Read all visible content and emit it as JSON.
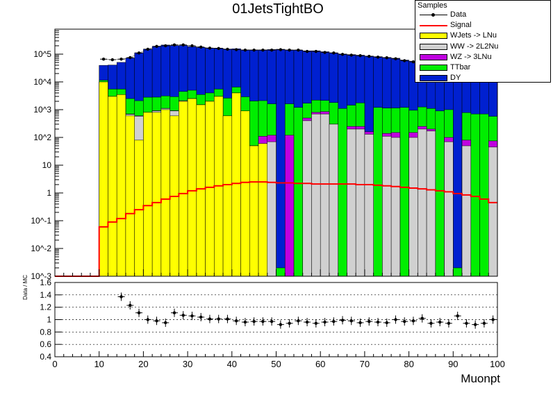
{
  "chart_data": {
    "type": "bar",
    "title": "01JetsTightBO",
    "xlabel": "Muonpt",
    "ratio_ylabel": "Data / MC",
    "legend_title": "Samples",
    "log_scale_y": true,
    "xlim": [
      0,
      100
    ],
    "ylim_log_exp": [
      -3,
      5.9
    ],
    "ratio_ylim": [
      0.4,
      1.6
    ],
    "x_ticks": [
      "0",
      "10",
      "20",
      "30",
      "40",
      "50",
      "60",
      "70",
      "80",
      "90",
      "100"
    ],
    "y_ticks": [
      "10^-3",
      "10^-2",
      "10^-1",
      "1",
      "10",
      "10^2",
      "10^3",
      "10^4",
      "10^5"
    ],
    "ratio_ticks": [
      "0.4",
      "0.6",
      "0.8",
      "1",
      "1.2",
      "1.4",
      "1.6"
    ],
    "bin_width": 2,
    "bin_low_edges": [
      10,
      12,
      14,
      16,
      18,
      20,
      22,
      24,
      26,
      28,
      30,
      32,
      34,
      36,
      38,
      40,
      42,
      44,
      46,
      48,
      50,
      52,
      54,
      56,
      58,
      60,
      62,
      64,
      66,
      68,
      70,
      72,
      74,
      76,
      78,
      80,
      82,
      84,
      86,
      88,
      90,
      92,
      94,
      96,
      98
    ],
    "series": [
      {
        "name": "WJets -> LNu",
        "color": "#ffff00",
        "values": [
          10000,
          3000,
          3500,
          600,
          80,
          800,
          800,
          1000,
          600,
          2000,
          2500,
          1500,
          2000,
          3000,
          600,
          4000,
          900,
          50,
          60,
          0.001,
          0.001,
          0.001,
          0.001,
          0.001,
          0.001,
          0.001,
          0.001,
          0.001,
          0.001,
          0.001,
          0.001,
          0.001,
          0.001,
          0.001,
          0.001,
          0.001,
          0.001,
          0.001,
          0.001,
          0.001,
          0.001,
          0.001,
          0.001,
          0.001,
          0.001
        ]
      },
      {
        "name": "WW -> 2L2Nu",
        "color": "#d0d0d0",
        "values": [
          0,
          0,
          0,
          80,
          500,
          0,
          100,
          100,
          300,
          100,
          0,
          0,
          0,
          0,
          0,
          0,
          0,
          0,
          0,
          70,
          0,
          0,
          0,
          400,
          700,
          700,
          300,
          0,
          200,
          200,
          130,
          0,
          110,
          100,
          0,
          100,
          200,
          170,
          0,
          70,
          0,
          50,
          0,
          0,
          45
        ]
      },
      {
        "name": "WZ -> 3LNu",
        "color": "#c000e0",
        "values": [
          0,
          0,
          0,
          20,
          20,
          0,
          20,
          20,
          20,
          0,
          0,
          0,
          0,
          0,
          0,
          0,
          0,
          0,
          50,
          50,
          0,
          120,
          0,
          100,
          100,
          150,
          0,
          0,
          50,
          50,
          30,
          0,
          30,
          50,
          0,
          50,
          50,
          30,
          0,
          30,
          0,
          30,
          0,
          0,
          30
        ]
      },
      {
        "name": "TTbar",
        "color": "#00ee00",
        "values": [
          1500,
          2500,
          2000,
          1800,
          1500,
          2000,
          1900,
          2000,
          2000,
          2400,
          2500,
          2000,
          2000,
          2500,
          2000,
          2500,
          2000,
          2000,
          2000,
          1500,
          0.001,
          1500,
          1200,
          1200,
          1400,
          1300,
          1500,
          1100,
          1200,
          1500,
          0.001,
          1200,
          1000,
          1000,
          1200,
          800,
          1000,
          900,
          900,
          900,
          0.001,
          700,
          700,
          700,
          500
        ]
      },
      {
        "name": "DY",
        "color": "#0020d0",
        "values": [
          28000,
          35000,
          45000,
          70000,
          110000,
          150000,
          190000,
          210000,
          200000,
          200000,
          180000,
          170000,
          160000,
          160000,
          150000,
          150000,
          140000,
          140000,
          140000,
          145000,
          150000,
          140000,
          140000,
          130000,
          130000,
          120000,
          110000,
          100000,
          95000,
          90000,
          85000,
          80000,
          75000,
          70000,
          60000,
          55000,
          50000,
          45000,
          40000,
          35000,
          30000,
          28000,
          25000,
          20000,
          18000
        ]
      },
      {
        "name": "Signal",
        "color": "#ff0000",
        "values": [
          0.06,
          0.09,
          0.12,
          0.18,
          0.25,
          0.35,
          0.45,
          0.6,
          0.75,
          0.95,
          1.2,
          1.4,
          1.6,
          1.8,
          2.0,
          2.2,
          2.4,
          2.5,
          2.5,
          2.4,
          2.3,
          2.3,
          2.2,
          2.2,
          2.1,
          2.1,
          2.1,
          2.1,
          2.1,
          2.0,
          2.0,
          1.9,
          1.8,
          1.7,
          1.6,
          1.5,
          1.4,
          1.3,
          1.2,
          1.1,
          0.95,
          0.85,
          0.75,
          0.6,
          0.45
        ]
      }
    ],
    "data": {
      "name": "Data",
      "color": "#000000",
      "x": [
        11,
        13,
        15,
        17,
        19,
        21,
        23,
        25,
        27,
        29,
        31,
        33,
        35,
        37,
        39,
        41,
        43,
        45,
        47,
        49,
        51,
        53,
        55,
        57,
        59,
        61,
        63,
        65,
        67,
        69,
        71,
        73,
        75,
        77,
        79,
        81,
        83,
        85,
        87,
        89,
        91,
        93,
        95,
        97,
        99
      ],
      "y": [
        66000,
        63000,
        66000,
        75000,
        110000,
        150000,
        190000,
        200000,
        215000,
        215000,
        200000,
        180000,
        165000,
        160000,
        150000,
        145000,
        140000,
        140000,
        140000,
        140000,
        145000,
        140000,
        140000,
        125000,
        125000,
        115000,
        110000,
        98000,
        92000,
        88000,
        83000,
        78000,
        74000,
        68000,
        58000,
        53000,
        48000,
        43000,
        38000,
        34000,
        29000,
        27000,
        24000,
        19000,
        17000
      ]
    },
    "ratio": {
      "x": [
        15,
        17,
        19,
        21,
        23,
        25,
        27,
        29,
        31,
        33,
        35,
        37,
        39,
        41,
        43,
        45,
        47,
        49,
        51,
        53,
        55,
        57,
        59,
        61,
        63,
        65,
        67,
        69,
        71,
        73,
        75,
        77,
        79,
        81,
        83,
        85,
        87,
        89,
        91,
        93,
        95,
        97,
        99
      ],
      "y": [
        1.37,
        1.23,
        1.11,
        1.0,
        0.98,
        0.95,
        1.11,
        1.07,
        1.06,
        1.04,
        1.01,
        1.01,
        1.01,
        0.98,
        0.96,
        0.97,
        0.97,
        0.97,
        0.92,
        0.94,
        0.98,
        0.96,
        0.94,
        0.96,
        0.97,
        0.99,
        0.98,
        0.95,
        0.97,
        0.96,
        0.95,
        1.0,
        0.97,
        0.98,
        1.02,
        0.94,
        0.96,
        0.94,
        1.06,
        0.94,
        0.92,
        0.94,
        1.0
      ]
    }
  }
}
